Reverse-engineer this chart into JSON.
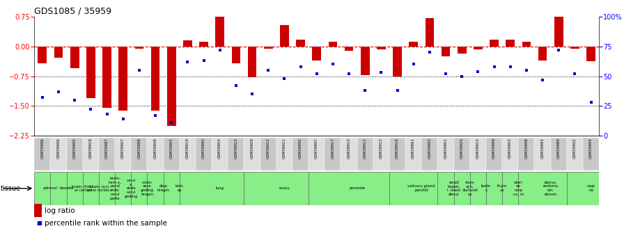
{
  "title": "GDS1085 / 35959",
  "samples": [
    "GSM39896",
    "GSM39906",
    "GSM39895",
    "GSM39918",
    "GSM39887",
    "GSM39907",
    "GSM39888",
    "GSM39908",
    "GSM39905",
    "GSM39919",
    "GSM39890",
    "GSM39904",
    "GSM39915",
    "GSM39909",
    "GSM39912",
    "GSM39921",
    "GSM39892",
    "GSM39897",
    "GSM39917",
    "GSM39910",
    "GSM39911",
    "GSM39913",
    "GSM39916",
    "GSM39891",
    "GSM39900",
    "GSM39901",
    "GSM39920",
    "GSM39914",
    "GSM39899",
    "GSM39903",
    "GSM39898",
    "GSM39893",
    "GSM39889",
    "GSM39902",
    "GSM39894"
  ],
  "log_ratio": [
    -0.42,
    -0.28,
    -0.55,
    -1.3,
    -1.55,
    -1.62,
    -0.05,
    -1.62,
    -2.0,
    0.15,
    0.12,
    0.82,
    -0.42,
    -0.78,
    -0.05,
    0.55,
    0.18,
    -0.35,
    0.12,
    -0.1,
    -0.72,
    -0.08,
    -0.75,
    0.12,
    0.72,
    -0.25,
    -0.18,
    -0.08,
    0.18,
    0.18,
    0.12,
    -0.35,
    0.85,
    -0.05,
    -0.38
  ],
  "percentile": [
    32,
    37,
    30,
    22,
    18,
    14,
    55,
    17,
    11,
    62,
    63,
    72,
    42,
    35,
    55,
    48,
    58,
    52,
    60,
    52,
    38,
    53,
    38,
    60,
    70,
    52,
    50,
    54,
    58,
    58,
    55,
    47,
    72,
    52,
    28
  ],
  "bar_color": "#cc0000",
  "dot_color": "#0000cc",
  "ylim_left": [
    -2.25,
    0.75
  ],
  "ylim_right": [
    0,
    100
  ],
  "yticks_left": [
    0.75,
    0,
    -0.75,
    -1.5,
    -2.25
  ],
  "yticks_right": [
    100,
    75,
    50,
    25,
    0
  ],
  "ytick_right_labels": [
    "100%",
    "75",
    "50",
    "25",
    "0"
  ],
  "tissue_color": "#88ee88",
  "tissue_border_color": "#666666",
  "sample_even_color": "#c8c8c8",
  "sample_odd_color": "#dedede",
  "tissues": [
    [
      0,
      1,
      "adrenal"
    ],
    [
      1,
      2,
      "bladder"
    ],
    [
      2,
      3,
      "brain, front\nal cortex"
    ],
    [
      3,
      4,
      "brain, occi\npital cortex"
    ],
    [
      4,
      5,
      "brain,\ntem x,\nporal\nendo\ncervi\nporte"
    ],
    [
      5,
      6,
      "cervi\nx,\nendo\ncervi\ngnding"
    ],
    [
      6,
      7,
      "colon\nasce\ngnding\nhragm"
    ],
    [
      7,
      8,
      "diap\nhragm"
    ],
    [
      8,
      9,
      "kidn\ney"
    ],
    [
      9,
      13,
      "lung"
    ],
    [
      13,
      17,
      "ovary"
    ],
    [
      17,
      22,
      "prostate"
    ],
    [
      22,
      25,
      "salivary gland,\nparotid"
    ],
    [
      25,
      26,
      "small\nbowel,\nl. duod\ndenui"
    ],
    [
      26,
      27,
      "stom\nach,\nductund\nus"
    ],
    [
      27,
      28,
      "teste\ns"
    ],
    [
      28,
      29,
      "thym\nus"
    ],
    [
      29,
      30,
      "uteri\nne\ncorp\nus, m"
    ],
    [
      30,
      33,
      "uterus,\nendomy\nom\netrium"
    ],
    [
      33,
      35,
      "vagi\nna"
    ]
  ]
}
